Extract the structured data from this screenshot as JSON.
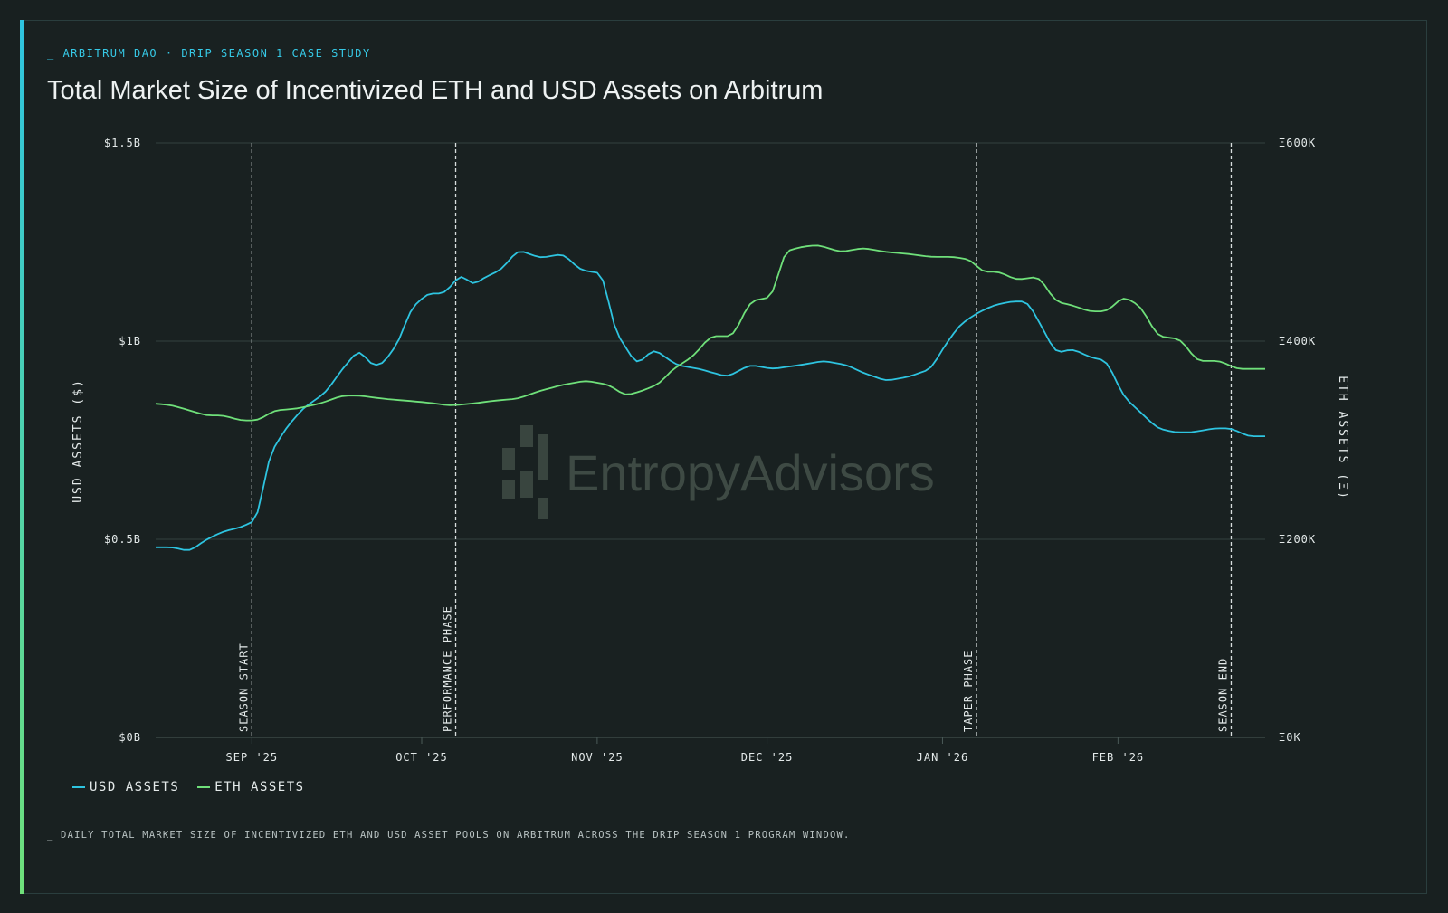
{
  "header": {
    "eyebrow": "_ ARBITRUM DAO · DRIP SEASON 1 CASE STUDY",
    "title": "Total Market Size of Incentivized ETH and USD Assets on Arbitrum"
  },
  "footnote": "_ DAILY TOTAL MARKET SIZE OF INCENTIVIZED ETH AND USD ASSET POOLS ON ARBITRUM ACROSS THE DRIP SEASON 1 PROGRAM WINDOW.",
  "watermark": {
    "text": "EntropyAdvisors",
    "logo": "entropy-advisors-logo"
  },
  "colors": {
    "usd": "#2ec4e0",
    "eth": "#6fe07a",
    "grid": "#33413f",
    "marker": "#d8dede",
    "background": "#192121"
  },
  "chart_data": {
    "type": "line",
    "x_range": [
      "2025-08-15",
      "2026-02-27"
    ],
    "y_left": {
      "label": "USD ASSETS ($)",
      "range": [
        0,
        1.5
      ],
      "unit": "B",
      "ticks": [
        "$0B",
        "$0.5B",
        "$1B",
        "$1.5B"
      ],
      "tick_values": [
        0,
        0.5,
        1,
        1.5
      ]
    },
    "y_right": {
      "label": "ETH ASSETS (Ξ)",
      "range": [
        0,
        600
      ],
      "unit": "K",
      "ticks": [
        "Ξ0K",
        "Ξ200K",
        "Ξ400K",
        "Ξ600K"
      ],
      "tick_values": [
        0,
        200,
        400,
        600
      ]
    },
    "x_ticks": [
      {
        "label": "SEP '25",
        "date": "2025-09-01"
      },
      {
        "label": "OCT '25",
        "date": "2025-10-01"
      },
      {
        "label": "NOV '25",
        "date": "2025-11-01"
      },
      {
        "label": "DEC '25",
        "date": "2025-12-01"
      },
      {
        "label": "JAN '26",
        "date": "2026-01-01"
      },
      {
        "label": "FEB '26",
        "date": "2026-02-01"
      }
    ],
    "markers": [
      {
        "label": "SEASON START",
        "date": "2025-09-01"
      },
      {
        "label": "PERFORMANCE PHASE",
        "date": "2025-10-07"
      },
      {
        "label": "TAPER PHASE",
        "date": "2026-01-07"
      },
      {
        "label": "SEASON END",
        "date": "2026-02-21"
      }
    ],
    "series": [
      {
        "name": "USD ASSETS",
        "axis": "left",
        "color": "#2ec4e0",
        "points": [
          [
            "2025-08-15",
            0.48
          ],
          [
            "2025-08-18",
            0.48
          ],
          [
            "2025-08-21",
            0.47
          ],
          [
            "2025-08-24",
            0.5
          ],
          [
            "2025-08-27",
            0.52
          ],
          [
            "2025-08-30",
            0.53
          ],
          [
            "2025-09-02",
            0.55
          ],
          [
            "2025-09-04",
            0.71
          ],
          [
            "2025-09-07",
            0.78
          ],
          [
            "2025-09-10",
            0.83
          ],
          [
            "2025-09-14",
            0.87
          ],
          [
            "2025-09-17",
            0.93
          ],
          [
            "2025-09-20",
            0.98
          ],
          [
            "2025-09-22",
            0.94
          ],
          [
            "2025-09-24",
            0.94
          ],
          [
            "2025-09-27",
            1.0
          ],
          [
            "2025-09-29",
            1.08
          ],
          [
            "2025-10-02",
            1.12
          ],
          [
            "2025-10-05",
            1.12
          ],
          [
            "2025-10-08",
            1.17
          ],
          [
            "2025-10-10",
            1.14
          ],
          [
            "2025-10-12",
            1.16
          ],
          [
            "2025-10-15",
            1.18
          ],
          [
            "2025-10-18",
            1.23
          ],
          [
            "2025-10-22",
            1.21
          ],
          [
            "2025-10-26",
            1.22
          ],
          [
            "2025-10-29",
            1.18
          ],
          [
            "2025-11-02",
            1.17
          ],
          [
            "2025-11-04",
            1.03
          ],
          [
            "2025-11-08",
            0.94
          ],
          [
            "2025-11-11",
            0.98
          ],
          [
            "2025-11-15",
            0.94
          ],
          [
            "2025-11-19",
            0.93
          ],
          [
            "2025-11-24",
            0.91
          ],
          [
            "2025-11-28",
            0.94
          ],
          [
            "2025-12-02",
            0.93
          ],
          [
            "2025-12-07",
            0.94
          ],
          [
            "2025-12-11",
            0.95
          ],
          [
            "2025-12-15",
            0.94
          ],
          [
            "2025-12-18",
            0.92
          ],
          [
            "2025-12-22",
            0.9
          ],
          [
            "2025-12-26",
            0.91
          ],
          [
            "2025-12-30",
            0.93
          ],
          [
            "2026-01-01",
            0.98
          ],
          [
            "2026-01-04",
            1.04
          ],
          [
            "2026-01-07",
            1.07
          ],
          [
            "2026-01-10",
            1.09
          ],
          [
            "2026-01-13",
            1.1
          ],
          [
            "2026-01-16",
            1.1
          ],
          [
            "2026-01-18",
            1.05
          ],
          [
            "2026-01-21",
            0.97
          ],
          [
            "2026-01-24",
            0.98
          ],
          [
            "2026-01-27",
            0.96
          ],
          [
            "2026-01-30",
            0.95
          ],
          [
            "2026-02-02",
            0.86
          ],
          [
            "2026-02-05",
            0.82
          ],
          [
            "2026-02-08",
            0.78
          ],
          [
            "2026-02-11",
            0.77
          ],
          [
            "2026-02-14",
            0.77
          ],
          [
            "2026-02-18",
            0.78
          ],
          [
            "2026-02-21",
            0.78
          ],
          [
            "2026-02-24",
            0.76
          ],
          [
            "2026-02-27",
            0.76
          ]
        ]
      },
      {
        "name": "ETH ASSETS",
        "axis": "right",
        "color": "#6fe07a",
        "points": [
          [
            "2025-08-15",
            337
          ],
          [
            "2025-08-18",
            335
          ],
          [
            "2025-08-21",
            330
          ],
          [
            "2025-08-24",
            325
          ],
          [
            "2025-08-27",
            325
          ],
          [
            "2025-08-30",
            320
          ],
          [
            "2025-09-02",
            320
          ],
          [
            "2025-09-05",
            330
          ],
          [
            "2025-09-09",
            332
          ],
          [
            "2025-09-13",
            337
          ],
          [
            "2025-09-17",
            345
          ],
          [
            "2025-09-20",
            345
          ],
          [
            "2025-09-24",
            342
          ],
          [
            "2025-09-28",
            340
          ],
          [
            "2025-10-02",
            338
          ],
          [
            "2025-10-06",
            335
          ],
          [
            "2025-10-10",
            337
          ],
          [
            "2025-10-14",
            340
          ],
          [
            "2025-10-18",
            342
          ],
          [
            "2025-10-22",
            350
          ],
          [
            "2025-10-26",
            356
          ],
          [
            "2025-10-30",
            360
          ],
          [
            "2025-11-03",
            356
          ],
          [
            "2025-11-06",
            345
          ],
          [
            "2025-11-09",
            350
          ],
          [
            "2025-11-12",
            357
          ],
          [
            "2025-11-14",
            370
          ],
          [
            "2025-11-18",
            385
          ],
          [
            "2025-11-21",
            405
          ],
          [
            "2025-11-25",
            405
          ],
          [
            "2025-11-28",
            440
          ],
          [
            "2025-12-02",
            445
          ],
          [
            "2025-12-04",
            490
          ],
          [
            "2025-12-07",
            495
          ],
          [
            "2025-12-10",
            497
          ],
          [
            "2025-12-14",
            490
          ],
          [
            "2025-12-18",
            494
          ],
          [
            "2025-12-22",
            490
          ],
          [
            "2025-12-26",
            488
          ],
          [
            "2025-12-30",
            485
          ],
          [
            "2026-01-03",
            485
          ],
          [
            "2026-01-06",
            482
          ],
          [
            "2026-01-08",
            470
          ],
          [
            "2026-01-11",
            470
          ],
          [
            "2026-01-14",
            462
          ],
          [
            "2026-01-18",
            465
          ],
          [
            "2026-01-21",
            440
          ],
          [
            "2026-01-24",
            436
          ],
          [
            "2026-01-27",
            430
          ],
          [
            "2026-01-30",
            430
          ],
          [
            "2026-02-02",
            445
          ],
          [
            "2026-02-05",
            435
          ],
          [
            "2026-02-08",
            405
          ],
          [
            "2026-02-12",
            402
          ],
          [
            "2026-02-15",
            380
          ],
          [
            "2026-02-19",
            380
          ],
          [
            "2026-02-22",
            372
          ],
          [
            "2026-02-27",
            372
          ]
        ]
      }
    ],
    "legend_placement": "bottom-left",
    "grid": true
  }
}
